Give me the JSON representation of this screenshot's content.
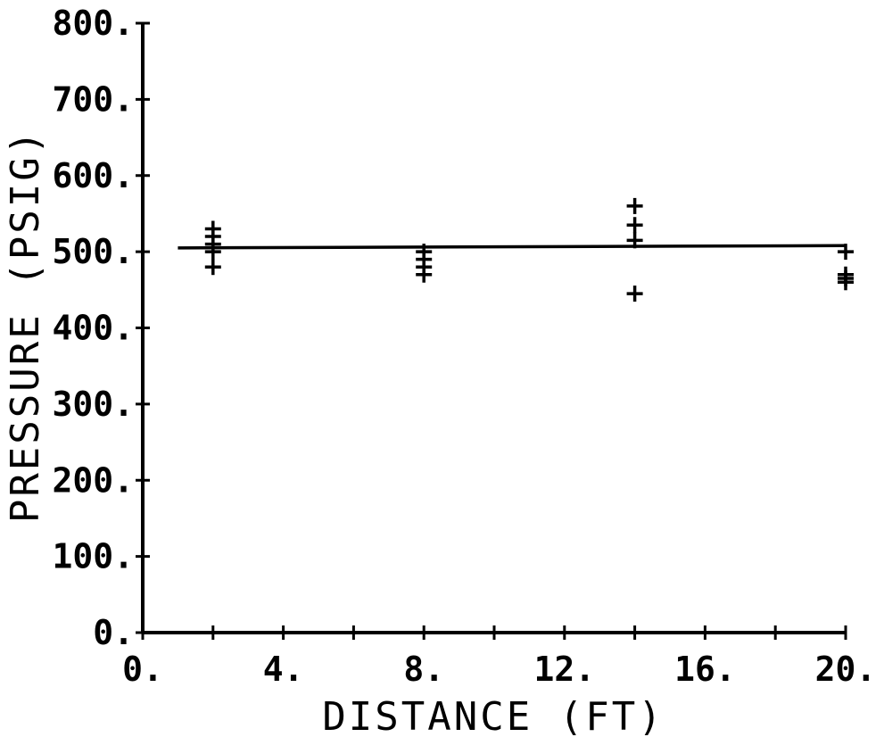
{
  "chart_data": {
    "type": "scatter",
    "xlabel": "DISTANCE (FT)",
    "ylabel": "PRESSURE (PSIG)",
    "xlim": [
      0,
      20
    ],
    "ylim": [
      0,
      800
    ],
    "x_ticks": [
      0,
      2,
      4,
      6,
      8,
      10,
      12,
      14,
      16,
      18,
      20
    ],
    "x_tick_labels": [
      {
        "value": 0,
        "label": "0."
      },
      {
        "value": 4,
        "label": "4."
      },
      {
        "value": 8,
        "label": "8."
      },
      {
        "value": 12,
        "label": "12."
      },
      {
        "value": 16,
        "label": "16."
      },
      {
        "value": 20,
        "label": "20."
      }
    ],
    "y_ticks": [
      0,
      100,
      200,
      300,
      400,
      500,
      600,
      700,
      800
    ],
    "y_tick_labels": [
      {
        "value": 0,
        "label": "0."
      },
      {
        "value": 100,
        "label": "100."
      },
      {
        "value": 200,
        "label": "200."
      },
      {
        "value": 300,
        "label": "300."
      },
      {
        "value": 400,
        "label": "400."
      },
      {
        "value": 500,
        "label": "500."
      },
      {
        "value": 600,
        "label": "600."
      },
      {
        "value": 700,
        "label": "700."
      },
      {
        "value": 800,
        "label": "800."
      }
    ],
    "grid": false,
    "marker": "plus",
    "points": [
      {
        "x": 2,
        "y": 530
      },
      {
        "x": 2,
        "y": 520
      },
      {
        "x": 2,
        "y": 510
      },
      {
        "x": 2,
        "y": 500
      },
      {
        "x": 2,
        "y": 480
      },
      {
        "x": 8,
        "y": 500
      },
      {
        "x": 8,
        "y": 490
      },
      {
        "x": 8,
        "y": 480
      },
      {
        "x": 8,
        "y": 470
      },
      {
        "x": 14,
        "y": 560
      },
      {
        "x": 14,
        "y": 535
      },
      {
        "x": 14,
        "y": 515
      },
      {
        "x": 14,
        "y": 445
      },
      {
        "x": 20,
        "y": 500
      },
      {
        "x": 20,
        "y": 470
      },
      {
        "x": 20,
        "y": 465
      },
      {
        "x": 20,
        "y": 460
      }
    ],
    "fit_line": {
      "x": [
        1,
        20
      ],
      "y": [
        505,
        508
      ]
    }
  }
}
